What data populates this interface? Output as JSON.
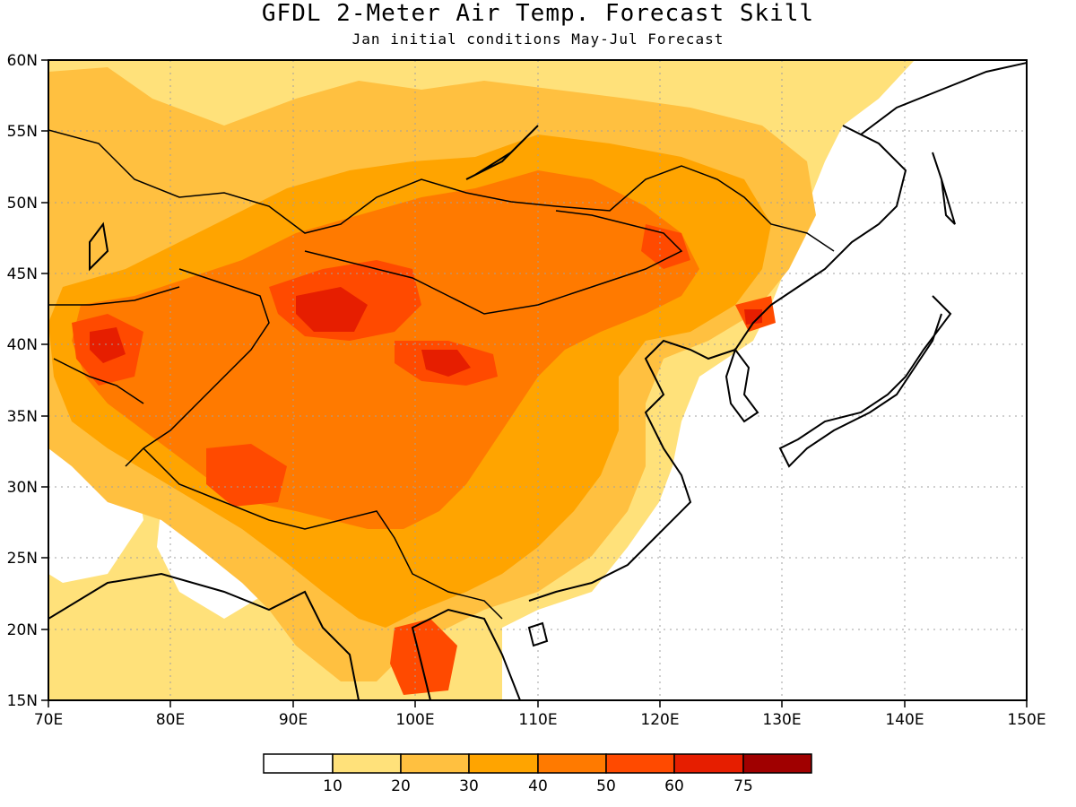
{
  "title": "GFDL 2-Meter Air Temp. Forecast Skill",
  "subtitle": "Jan initial conditions  May-Jul Forecast",
  "map": {
    "lon_range": [
      70,
      150
    ],
    "lat_range": [
      15,
      60
    ],
    "lon_ticks": [
      "70E",
      "80E",
      "90E",
      "100E",
      "110E",
      "120E",
      "130E",
      "140E",
      "150E"
    ],
    "lat_ticks": [
      "15N",
      "20N",
      "25N",
      "30N",
      "35N",
      "40N",
      "45N",
      "50N",
      "55N",
      "60N"
    ],
    "grid": true,
    "ocean_color": "#ffffff",
    "coastline_color": "#000000"
  },
  "legend": {
    "colors": [
      "#ffffff",
      "#ffe17a",
      "#ffc040",
      "#ffa400",
      "#ff7a00",
      "#ff4a00",
      "#e61e00",
      "#a00000"
    ],
    "labels": [
      "10",
      "20",
      "30",
      "40",
      "50",
      "60",
      "75"
    ]
  }
}
